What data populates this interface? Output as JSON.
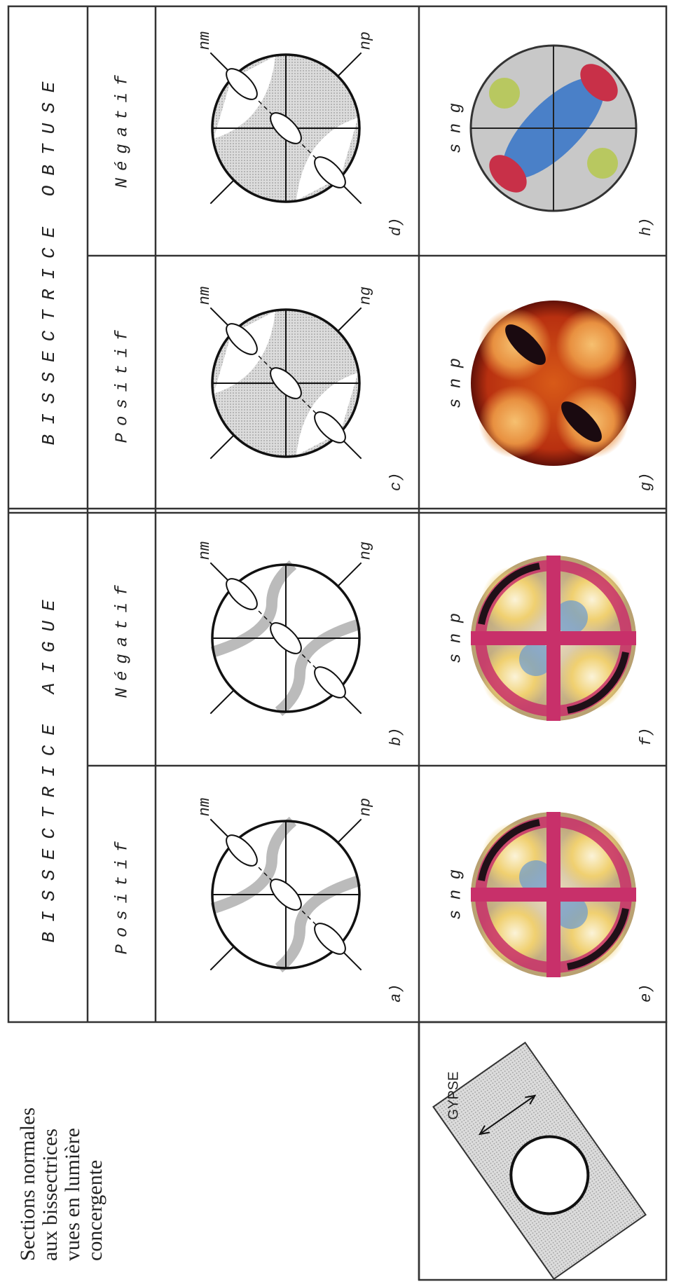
{
  "headers": {
    "aigue": "BISSECTRICE AIGUE",
    "obtuse": "BISSECTRICE OBTUSE"
  },
  "section_title": [
    "Sections normales",
    "aux bissectrices",
    "vues en lumière",
    "concergente"
  ],
  "plate_label": "GYPSE",
  "columns": [
    {
      "sign": "Positif",
      "diagram_label": "a)",
      "axes": [
        "nm",
        "np"
      ],
      "photo_label": "e)",
      "photo_caption": "s n g"
    },
    {
      "sign": "Négatif",
      "diagram_label": "b)",
      "axes": [
        "nm",
        "ng"
      ],
      "photo_label": "f)",
      "photo_caption": "s n p"
    },
    {
      "sign": "Positif",
      "diagram_label": "c)",
      "axes": [
        "nm",
        "ng"
      ],
      "photo_label": "g)",
      "photo_caption": "s n p"
    },
    {
      "sign": "Négatif",
      "diagram_label": "d)",
      "axes": [
        "nm",
        "np"
      ],
      "photo_label": "h)",
      "photo_caption": "s n g"
    }
  ]
}
